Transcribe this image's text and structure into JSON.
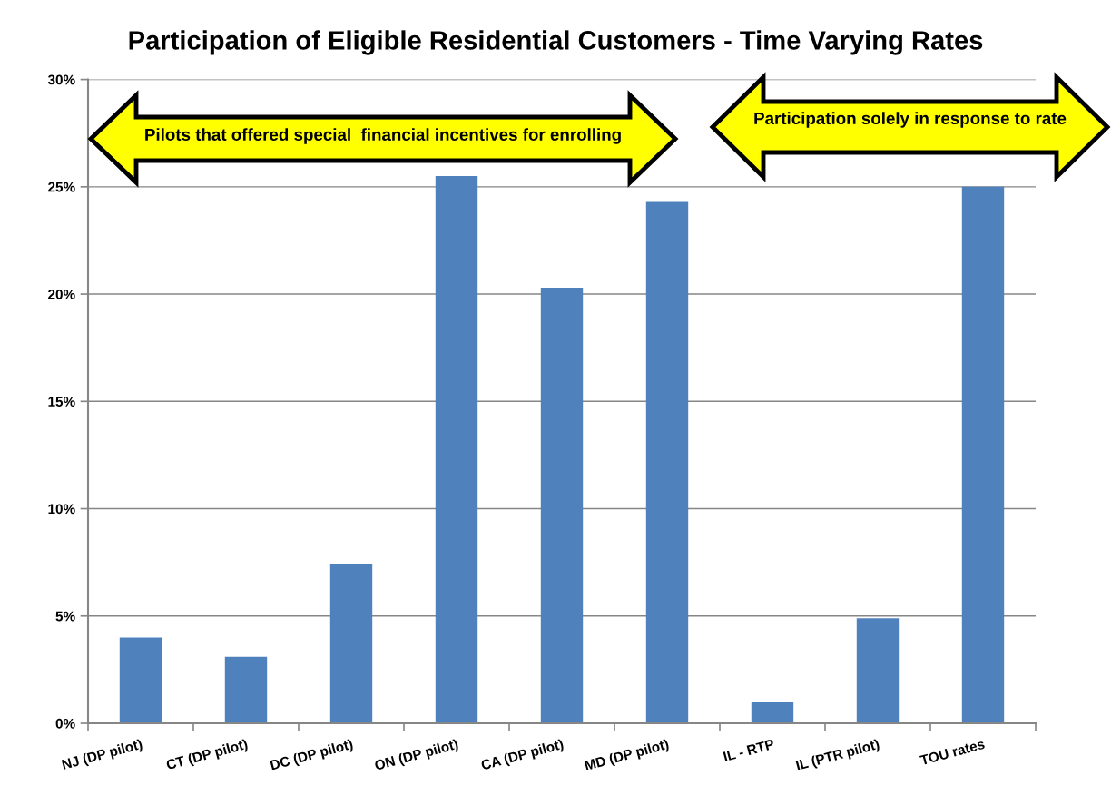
{
  "chart_data": {
    "type": "bar",
    "title": "Participation of Eligible Residential Customers - Time Varying Rates",
    "categories": [
      "NJ (DP pilot)",
      "CT (DP pilot)",
      "DC (DP pilot)",
      "ON (DP pilot)",
      "CA (DP pilot)",
      "MD (DP pilot)",
      "IL - RTP",
      "IL (PTR pilot)",
      "TOU rates"
    ],
    "values": [
      4.0,
      3.1,
      7.4,
      25.5,
      20.3,
      24.3,
      1.0,
      4.9,
      25.0
    ],
    "color": "#4f81bd",
    "ylim": [
      0,
      30
    ],
    "yticks": [
      {
        "value": 0,
        "label": "0%"
      },
      {
        "value": 5,
        "label": "5%"
      },
      {
        "value": 10,
        "label": "10%"
      },
      {
        "value": 15,
        "label": "15%"
      },
      {
        "value": 20,
        "label": "20%"
      },
      {
        "value": 25,
        "label": "25%"
      },
      {
        "value": 30,
        "label": "30%"
      }
    ],
    "grid": "y",
    "annotations": [
      "Pilots that offered special  financial incentives for enrolling",
      "Participation solely in response to rate"
    ]
  }
}
